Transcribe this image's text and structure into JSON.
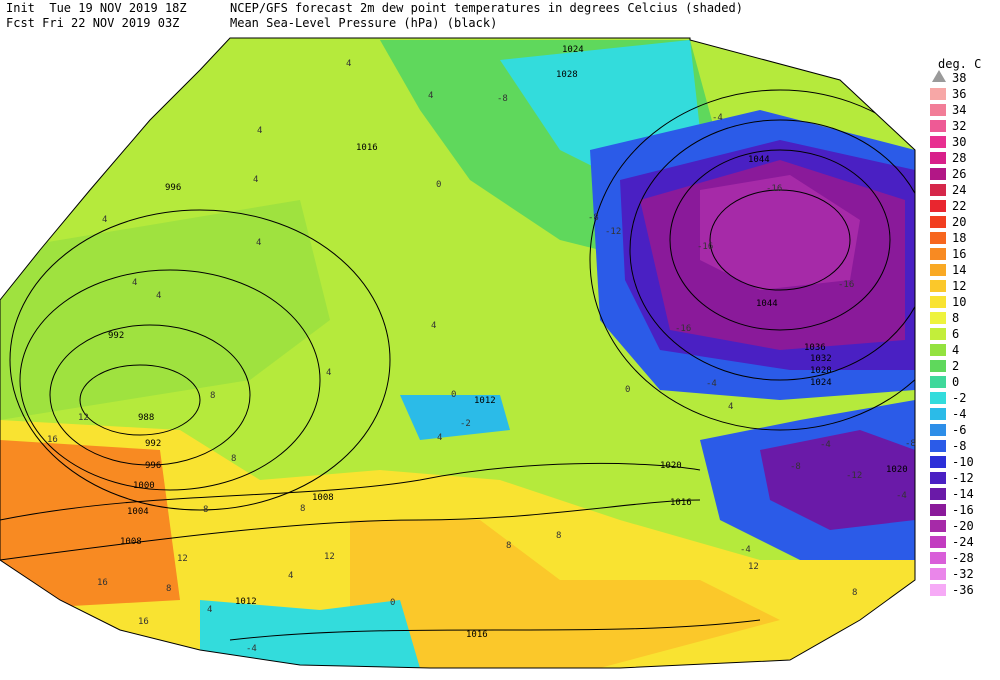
{
  "header": {
    "line1_left": "Init  Tue 19 NOV 2019 18Z",
    "line2_left": "Fcst Fri 22 NOV 2019 03Z",
    "line1_mid": "NCEP/GFS forecast 2m dew point temperatures in degrees Celcius (shaded)",
    "line2_mid": "Mean Sea-Level Pressure (hPa) (black)"
  },
  "legend": {
    "title": "deg. C",
    "top_value": "38",
    "entries": [
      {
        "label": "36",
        "color": "#f7a7a6"
      },
      {
        "label": "34",
        "color": "#f27d97"
      },
      {
        "label": "32",
        "color": "#ee5a95"
      },
      {
        "label": "30",
        "color": "#e82f90"
      },
      {
        "label": "28",
        "color": "#d8208a"
      },
      {
        "label": "26",
        "color": "#b21786"
      },
      {
        "label": "24",
        "color": "#d5274a"
      },
      {
        "label": "22",
        "color": "#e9262f"
      },
      {
        "label": "20",
        "color": "#f23e20"
      },
      {
        "label": "18",
        "color": "#f7661e"
      },
      {
        "label": "16",
        "color": "#f88a22"
      },
      {
        "label": "14",
        "color": "#f9a925"
      },
      {
        "label": "12",
        "color": "#fbc82a"
      },
      {
        "label": "10",
        "color": "#f9e331"
      },
      {
        "label": "8",
        "color": "#eef33d"
      },
      {
        "label": "6",
        "color": "#c3ee3a"
      },
      {
        "label": "4",
        "color": "#93e23f"
      },
      {
        "label": "2",
        "color": "#5fd85c"
      },
      {
        "label": "0",
        "color": "#3fd89a"
      },
      {
        "label": "-2",
        "color": "#33dcdc"
      },
      {
        "label": "-4",
        "color": "#2bbbe8"
      },
      {
        "label": "-6",
        "color": "#2e8ee8"
      },
      {
        "label": "-8",
        "color": "#2b5be8"
      },
      {
        "label": "-10",
        "color": "#2c2fd8"
      },
      {
        "label": "-12",
        "color": "#4a20c3"
      },
      {
        "label": "-14",
        "color": "#6a1aa8"
      },
      {
        "label": "-16",
        "color": "#8a1a9a"
      },
      {
        "label": "-20",
        "color": "#a62aa8"
      },
      {
        "label": "-24",
        "color": "#c23cc0"
      },
      {
        "label": "-28",
        "color": "#d95fd9"
      },
      {
        "label": "-32",
        "color": "#ea86ea"
      },
      {
        "label": "-36",
        "color": "#f6aaf6"
      }
    ]
  },
  "pressure_labels": [
    "1024",
    "1028",
    "1016",
    "996",
    "992",
    "988",
    "992",
    "996",
    "1000",
    "1004",
    "1008",
    "1012",
    "1016",
    "1020",
    "1012",
    "1008",
    "1044",
    "1044",
    "1036",
    "1032",
    "1028",
    "1024",
    "1020",
    "1016"
  ],
  "dewpoint_labels": [
    "4",
    "4",
    "4",
    "4",
    "4",
    "4",
    "4",
    "4",
    "4",
    "8",
    "8",
    "12",
    "16",
    "16",
    "12",
    "8",
    "8",
    "12",
    "16",
    "8",
    "8",
    "4",
    "4",
    "0",
    "0",
    "-8",
    "-4",
    "-16",
    "-16",
    "-16",
    "-12",
    "-16",
    "-8",
    "-4",
    "-4",
    "-8",
    "-12",
    "0",
    "8",
    "12",
    "8",
    "-4",
    "-2",
    "-4",
    "4",
    "4",
    "4",
    "0",
    "-4",
    "-8"
  ]
}
